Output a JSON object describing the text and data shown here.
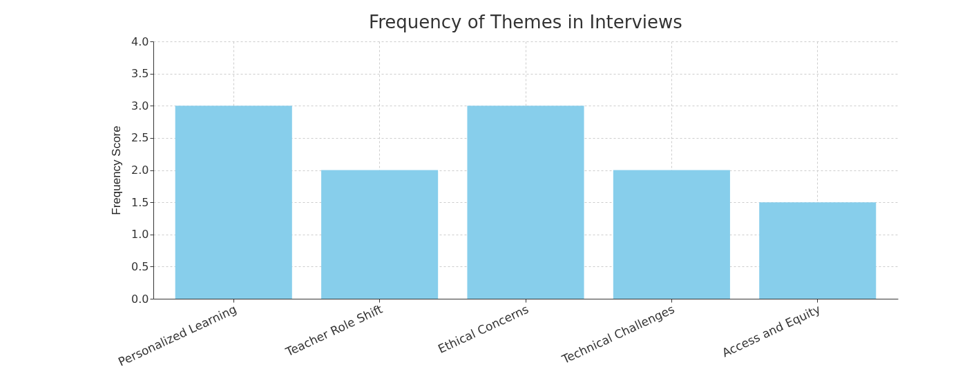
{
  "chart_data": {
    "type": "bar",
    "title": "Frequency of Themes in Interviews",
    "ylabel": "Frequency Score",
    "categories": [
      "Personalized Learning",
      "Teacher Role Shift",
      "Ethical Concerns",
      "Technical Challenges",
      "Access and Equity"
    ],
    "values": [
      3,
      2,
      3,
      2,
      1.5
    ],
    "color": "#87ceeb",
    "ylim": [
      0,
      4
    ],
    "yticks": [
      {
        "value": 0,
        "label": "0.0"
      },
      {
        "value": 0.5,
        "label": "0.5"
      },
      {
        "value": 1,
        "label": "1.0"
      },
      {
        "value": 1.5,
        "label": "1.5"
      },
      {
        "value": 2,
        "label": "2.0"
      },
      {
        "value": 2.5,
        "label": "2.5"
      },
      {
        "value": 3,
        "label": "3.0"
      },
      {
        "value": 3.5,
        "label": "3.5"
      },
      {
        "value": 4,
        "label": "4.0"
      }
    ],
    "grid": true
  }
}
